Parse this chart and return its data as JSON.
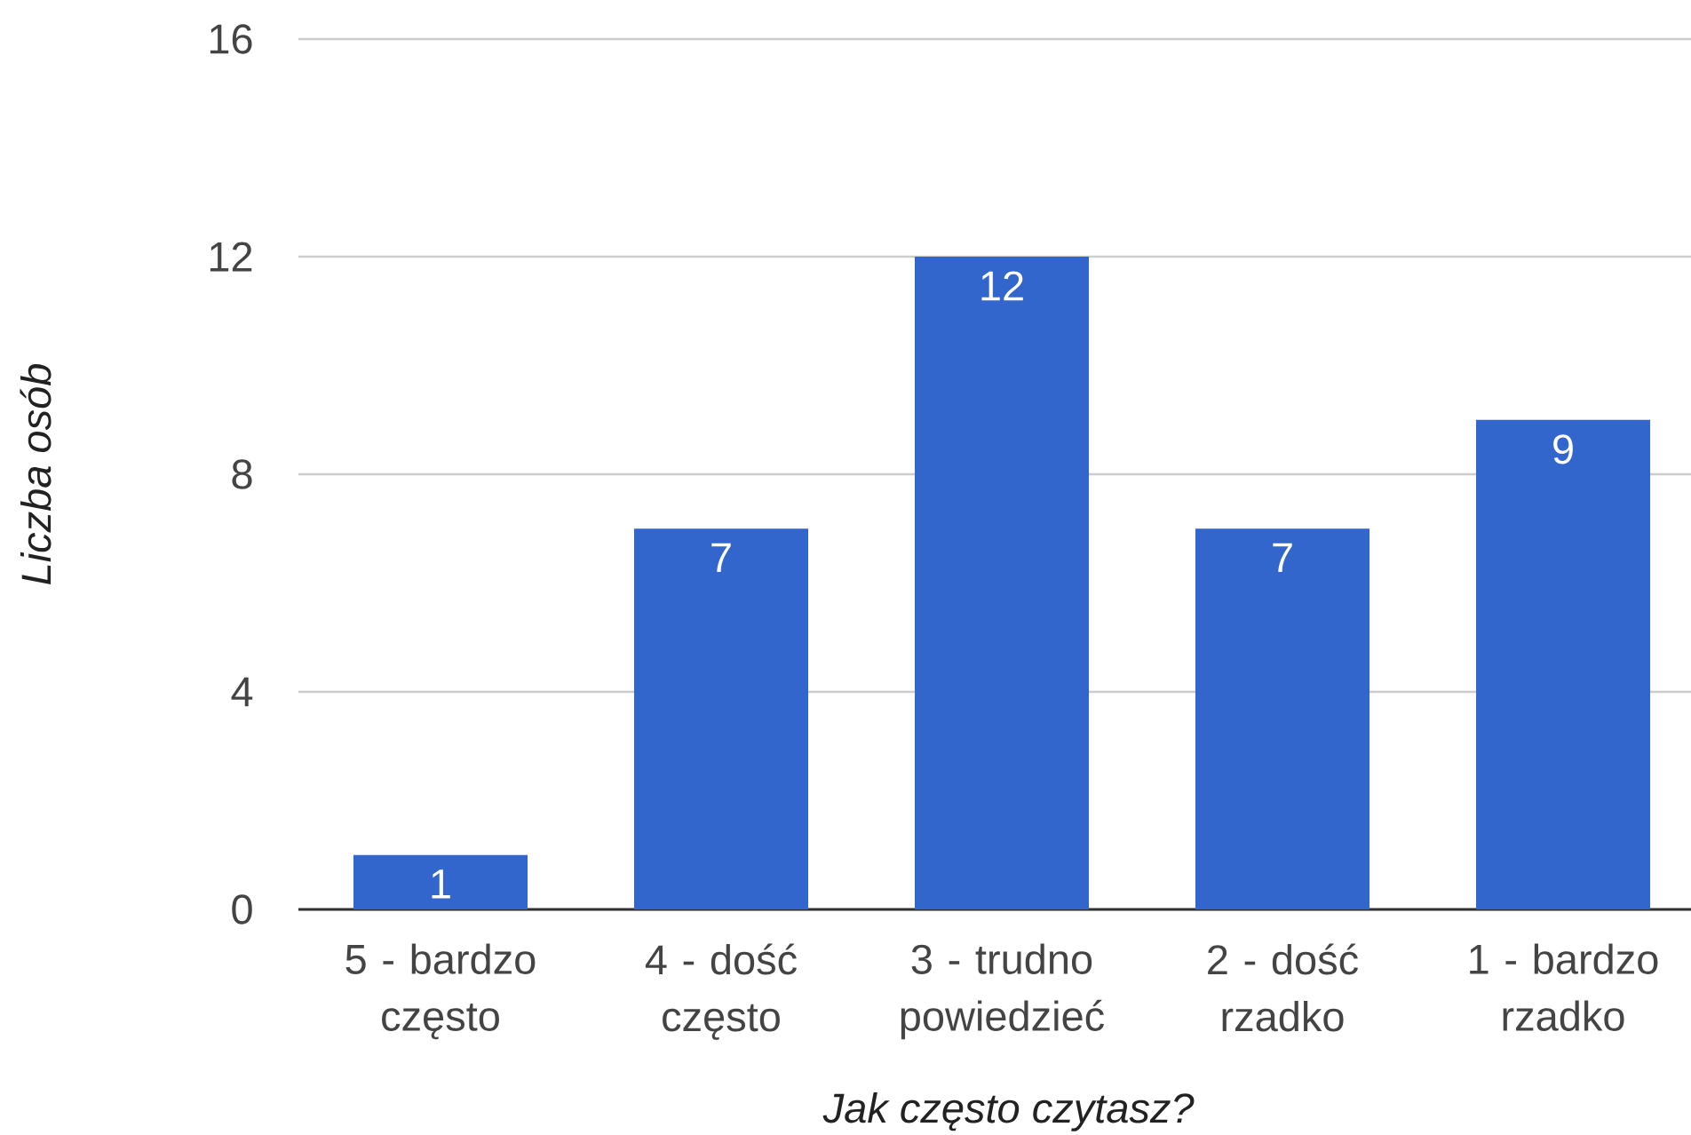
{
  "chart_data": {
    "type": "bar",
    "xlabel": "Jak często czytasz?",
    "ylabel": "Liczba osób",
    "categories": [
      "5 - bardzo często",
      "4 - dość często",
      "3 - trudno powiedzieć",
      "2 - dość rzadko",
      "1 - bardzo rzadko"
    ],
    "values": [
      1,
      7,
      12,
      7,
      9
    ],
    "color": "#3366cc",
    "ylim": [
      0,
      16
    ],
    "yticks": [
      0,
      4,
      8,
      12,
      16
    ],
    "grid": "y",
    "data_labels": true
  }
}
